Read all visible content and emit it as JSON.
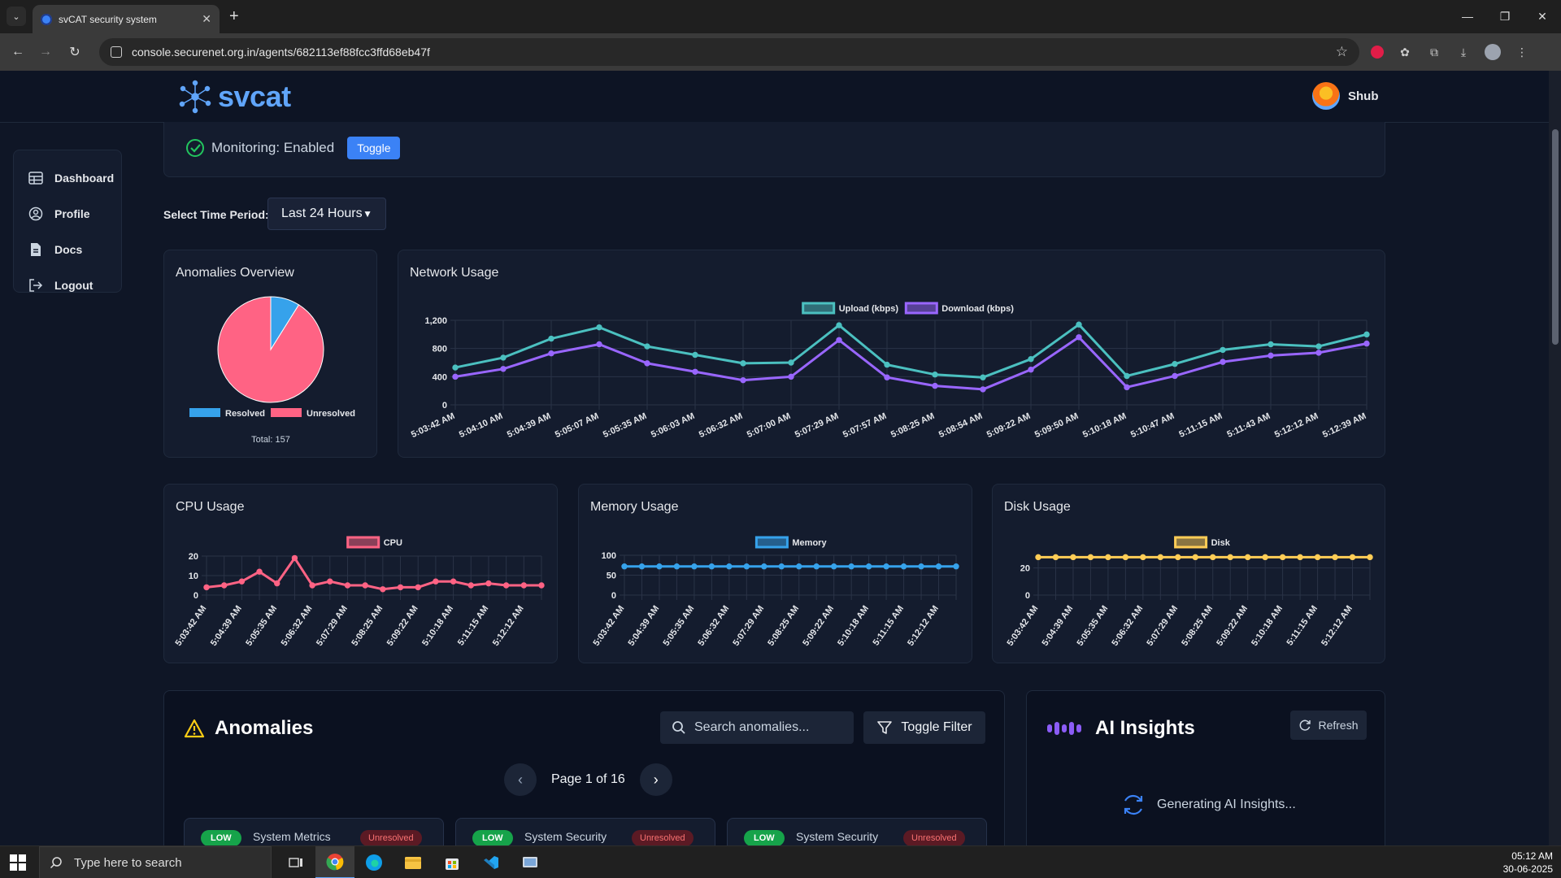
{
  "browser": {
    "tab_title": "svCAT security system",
    "url": "console.securenet.org.in/agents/682113ef88fcc3ffd68eb47f"
  },
  "header": {
    "logo_text": "svcat",
    "user_name": "Shub"
  },
  "sidebar": {
    "items": [
      {
        "label": "Dashboard",
        "icon": "table-icon"
      },
      {
        "label": "Profile",
        "icon": "user-circle-icon"
      },
      {
        "label": "Docs",
        "icon": "document-icon"
      },
      {
        "label": "Logout",
        "icon": "logout-icon"
      }
    ]
  },
  "monitoring": {
    "status_text": "Monitoring: Enabled",
    "toggle_label": "Toggle"
  },
  "period": {
    "label": "Select Time Period:",
    "selected": "Last 24 Hours"
  },
  "colors": {
    "pie_resolved": "#36a2eb",
    "pie_unresolved": "#ff6384",
    "upload": "#4bc0c0",
    "download": "#9966ff",
    "cpu": "#ff6384",
    "memory": "#36a2eb",
    "disk": "#ffcd56"
  },
  "chart_data": [
    {
      "type": "pie",
      "title": "Anomalies Overview",
      "labels": [
        "Resolved",
        "Unresolved"
      ],
      "values": [
        14,
        143
      ],
      "total_label": "Total: 157",
      "legend": "bottom"
    },
    {
      "type": "line",
      "title": "Network Usage",
      "x": [
        "5:03:42 AM",
        "5:04:10 AM",
        "5:04:39 AM",
        "5:05:07 AM",
        "5:05:35 AM",
        "5:06:03 AM",
        "5:06:32 AM",
        "5:07:00 AM",
        "5:07:29 AM",
        "5:07:57 AM",
        "5:08:25 AM",
        "5:08:54 AM",
        "5:09:22 AM",
        "5:09:50 AM",
        "5:10:18 AM",
        "5:10:47 AM",
        "5:11:15 AM",
        "5:11:43 AM",
        "5:12:12 AM",
        "5:12:39 AM"
      ],
      "series": [
        {
          "name": "Upload (kbps)",
          "values": [
            530,
            670,
            940,
            1100,
            830,
            710,
            590,
            600,
            1130,
            570,
            430,
            390,
            650,
            1140,
            410,
            580,
            780,
            860,
            830,
            1000
          ]
        },
        {
          "name": "Download (kbps)",
          "values": [
            400,
            510,
            730,
            860,
            590,
            470,
            350,
            400,
            920,
            390,
            270,
            220,
            500,
            960,
            250,
            410,
            610,
            700,
            740,
            870
          ]
        }
      ],
      "y_ticks": [
        "0",
        "400",
        "800",
        "1,200"
      ],
      "ylim": [
        0,
        1200
      ],
      "legend": "top"
    },
    {
      "type": "line",
      "title": "CPU Usage",
      "x": [
        "5:03:42 AM",
        "5:04:10 AM",
        "5:04:39 AM",
        "5:05:07 AM",
        "5:05:35 AM",
        "5:06:03 AM",
        "5:06:32 AM",
        "5:07:00 AM",
        "5:07:29 AM",
        "5:07:57 AM",
        "5:08:25 AM",
        "5:08:54 AM",
        "5:09:22 AM",
        "5:09:50 AM",
        "5:10:18 AM",
        "5:10:47 AM",
        "5:11:15 AM",
        "5:11:43 AM",
        "5:12:12 AM",
        "5:12:39 AM"
      ],
      "x_ticks": [
        "5:03:42 AM",
        "5:04:39 AM",
        "5:05:35 AM",
        "5:06:32 AM",
        "5:07:29 AM",
        "5:08:25 AM",
        "5:09:22 AM",
        "5:10:18 AM",
        "5:11:15 AM",
        "5:12:12 AM"
      ],
      "series": [
        {
          "name": "CPU",
          "values": [
            4,
            5,
            7,
            12,
            6,
            19,
            5,
            7,
            5,
            5,
            3,
            4,
            4,
            7,
            7,
            5,
            6,
            5,
            5,
            5
          ]
        }
      ],
      "y_ticks": [
        "0",
        "10",
        "20"
      ],
      "ylim": [
        0,
        20
      ],
      "legend": "top"
    },
    {
      "type": "line",
      "title": "Memory Usage",
      "x": [
        "5:03:42 AM",
        "5:04:10 AM",
        "5:04:39 AM",
        "5:05:07 AM",
        "5:05:35 AM",
        "5:06:03 AM",
        "5:06:32 AM",
        "5:07:00 AM",
        "5:07:29 AM",
        "5:07:57 AM",
        "5:08:25 AM",
        "5:08:54 AM",
        "5:09:22 AM",
        "5:09:50 AM",
        "5:10:18 AM",
        "5:10:47 AM",
        "5:11:15 AM",
        "5:11:43 AM",
        "5:12:12 AM",
        "5:12:39 AM"
      ],
      "x_ticks": [
        "5:03:42 AM",
        "5:04:39 AM",
        "5:05:35 AM",
        "5:06:32 AM",
        "5:07:29 AM",
        "5:08:25 AM",
        "5:09:22 AM",
        "5:10:18 AM",
        "5:11:15 AM",
        "5:12:12 AM"
      ],
      "series": [
        {
          "name": "Memory",
          "values": [
            72,
            72,
            72,
            72,
            72,
            72,
            72,
            72,
            72,
            72,
            72,
            72,
            72,
            72,
            72,
            72,
            72,
            72,
            72,
            72
          ]
        }
      ],
      "y_ticks": [
        "0",
        "50",
        "100"
      ],
      "ylim": [
        0,
        100
      ],
      "legend": "top"
    },
    {
      "type": "line",
      "title": "Disk Usage",
      "x": [
        "5:03:42 AM",
        "5:04:10 AM",
        "5:04:39 AM",
        "5:05:07 AM",
        "5:05:35 AM",
        "5:06:03 AM",
        "5:06:32 AM",
        "5:07:00 AM",
        "5:07:29 AM",
        "5:07:57 AM",
        "5:08:25 AM",
        "5:08:54 AM",
        "5:09:22 AM",
        "5:09:50 AM",
        "5:10:18 AM",
        "5:10:47 AM",
        "5:11:15 AM",
        "5:11:43 AM",
        "5:12:12 AM",
        "5:12:39 AM"
      ],
      "x_ticks": [
        "5:03:42 AM",
        "5:04:39 AM",
        "5:05:35 AM",
        "5:06:32 AM",
        "5:07:29 AM",
        "5:08:25 AM",
        "5:09:22 AM",
        "5:10:18 AM",
        "5:11:15 AM",
        "5:12:12 AM"
      ],
      "series": [
        {
          "name": "Disk",
          "values": [
            28,
            28,
            28,
            28,
            28,
            28,
            28,
            28,
            28,
            28,
            28,
            28,
            28,
            28,
            28,
            28,
            28,
            28,
            28,
            28
          ]
        }
      ],
      "y_ticks": [
        "0",
        "20"
      ],
      "ylim": [
        0,
        30
      ],
      "legend": "top"
    }
  ],
  "anomalies": {
    "title": "Anomalies",
    "search_placeholder": "Search anomalies...",
    "filter_label": "Toggle Filter",
    "page_text": "Page 1 of 16",
    "cards": [
      {
        "severity": "LOW",
        "category": "System Metrics",
        "status": "Unresolved"
      },
      {
        "severity": "LOW",
        "category": "System Security",
        "status": "Unresolved"
      },
      {
        "severity": "LOW",
        "category": "System Security",
        "status": "Unresolved"
      }
    ]
  },
  "ai_insights": {
    "title": "AI Insights",
    "refresh_label": "Refresh",
    "generating_text": "Generating AI Insights..."
  },
  "taskbar": {
    "search_placeholder": "Type here to search",
    "time": "05:12 AM",
    "date": "30-06-2025"
  }
}
